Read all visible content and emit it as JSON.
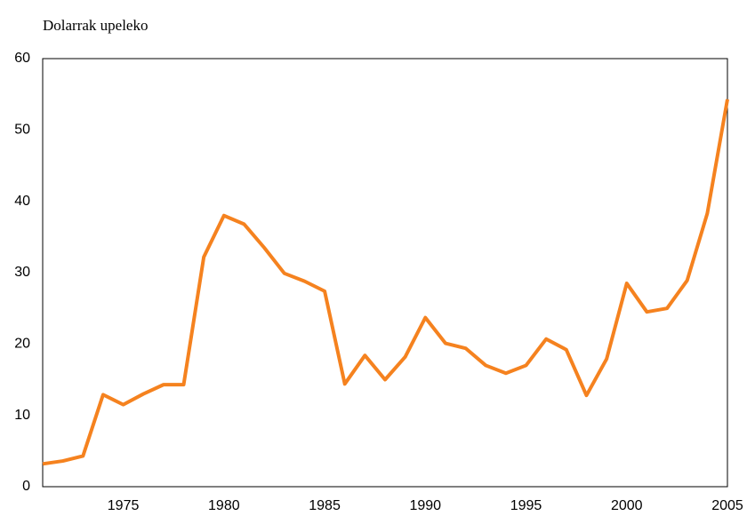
{
  "chart_data": {
    "type": "line",
    "y_axis_label": "Dolarrak upeleko",
    "x": [
      1971,
      1972,
      1973,
      1974,
      1975,
      1976,
      1977,
      1978,
      1979,
      1980,
      1981,
      1982,
      1983,
      1984,
      1985,
      1986,
      1987,
      1988,
      1989,
      1990,
      1991,
      1992,
      1993,
      1994,
      1995,
      1996,
      1997,
      1998,
      1999,
      2000,
      2001,
      2002,
      2003,
      2004,
      2005
    ],
    "series": [
      {
        "color": "#f5821f",
        "values": [
          3.2,
          3.6,
          4.3,
          12.9,
          11.5,
          13.0,
          14.3,
          14.3,
          32.2,
          38.0,
          36.8,
          33.5,
          29.9,
          28.8,
          27.4,
          14.4,
          18.4,
          15.0,
          18.2,
          23.7,
          20.1,
          19.4,
          17.0,
          15.9,
          17.0,
          20.7,
          19.2,
          12.8,
          17.9,
          28.5,
          24.5,
          25.0,
          28.9,
          38.3,
          54.3
        ]
      }
    ],
    "xlim": [
      1971,
      2005
    ],
    "xticks": [
      1975,
      1980,
      1985,
      1990,
      1995,
      2000,
      2005
    ],
    "ylim": [
      0,
      60
    ],
    "yticks": [
      0,
      10,
      20,
      30,
      40,
      50,
      60
    ],
    "grid": false
  }
}
